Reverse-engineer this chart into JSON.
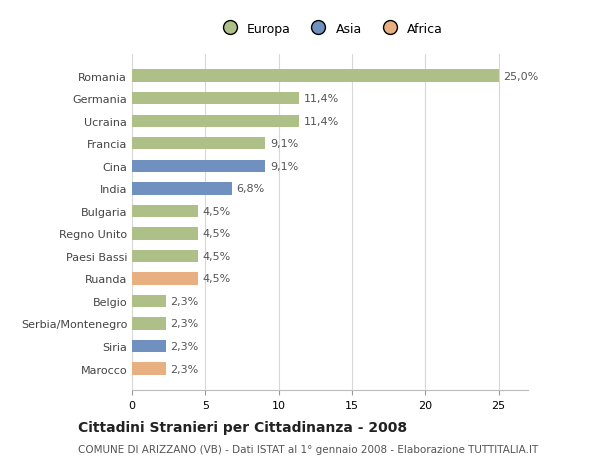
{
  "categories": [
    "Romania",
    "Germania",
    "Ucraina",
    "Francia",
    "Cina",
    "India",
    "Bulgaria",
    "Regno Unito",
    "Paesi Bassi",
    "Ruanda",
    "Belgio",
    "Serbia/Montenegro",
    "Siria",
    "Marocco"
  ],
  "values": [
    25.0,
    11.4,
    11.4,
    9.1,
    9.1,
    6.8,
    4.5,
    4.5,
    4.5,
    4.5,
    2.3,
    2.3,
    2.3,
    2.3
  ],
  "labels": [
    "25,0%",
    "11,4%",
    "11,4%",
    "9,1%",
    "9,1%",
    "6,8%",
    "4,5%",
    "4,5%",
    "4,5%",
    "4,5%",
    "2,3%",
    "2,3%",
    "2,3%",
    "2,3%"
  ],
  "continents": [
    "Europa",
    "Europa",
    "Europa",
    "Europa",
    "Asia",
    "Asia",
    "Europa",
    "Europa",
    "Europa",
    "Africa",
    "Europa",
    "Europa",
    "Asia",
    "Africa"
  ],
  "colors": {
    "Europa": "#aec087",
    "Asia": "#7090c0",
    "Africa": "#e8b080"
  },
  "xlim": [
    0,
    27
  ],
  "xticks": [
    0,
    5,
    10,
    15,
    20,
    25
  ],
  "title": "Cittadini Stranieri per Cittadinanza - 2008",
  "subtitle": "COMUNE DI ARIZZANO (VB) - Dati ISTAT al 1° gennaio 2008 - Elaborazione TUTTITALIA.IT",
  "background_color": "#ffffff",
  "bar_height": 0.55,
  "grid_color": "#d8d8d8",
  "label_fontsize": 8,
  "tick_fontsize": 8,
  "title_fontsize": 10,
  "subtitle_fontsize": 7.5,
  "legend_order": [
    "Europa",
    "Asia",
    "Africa"
  ]
}
